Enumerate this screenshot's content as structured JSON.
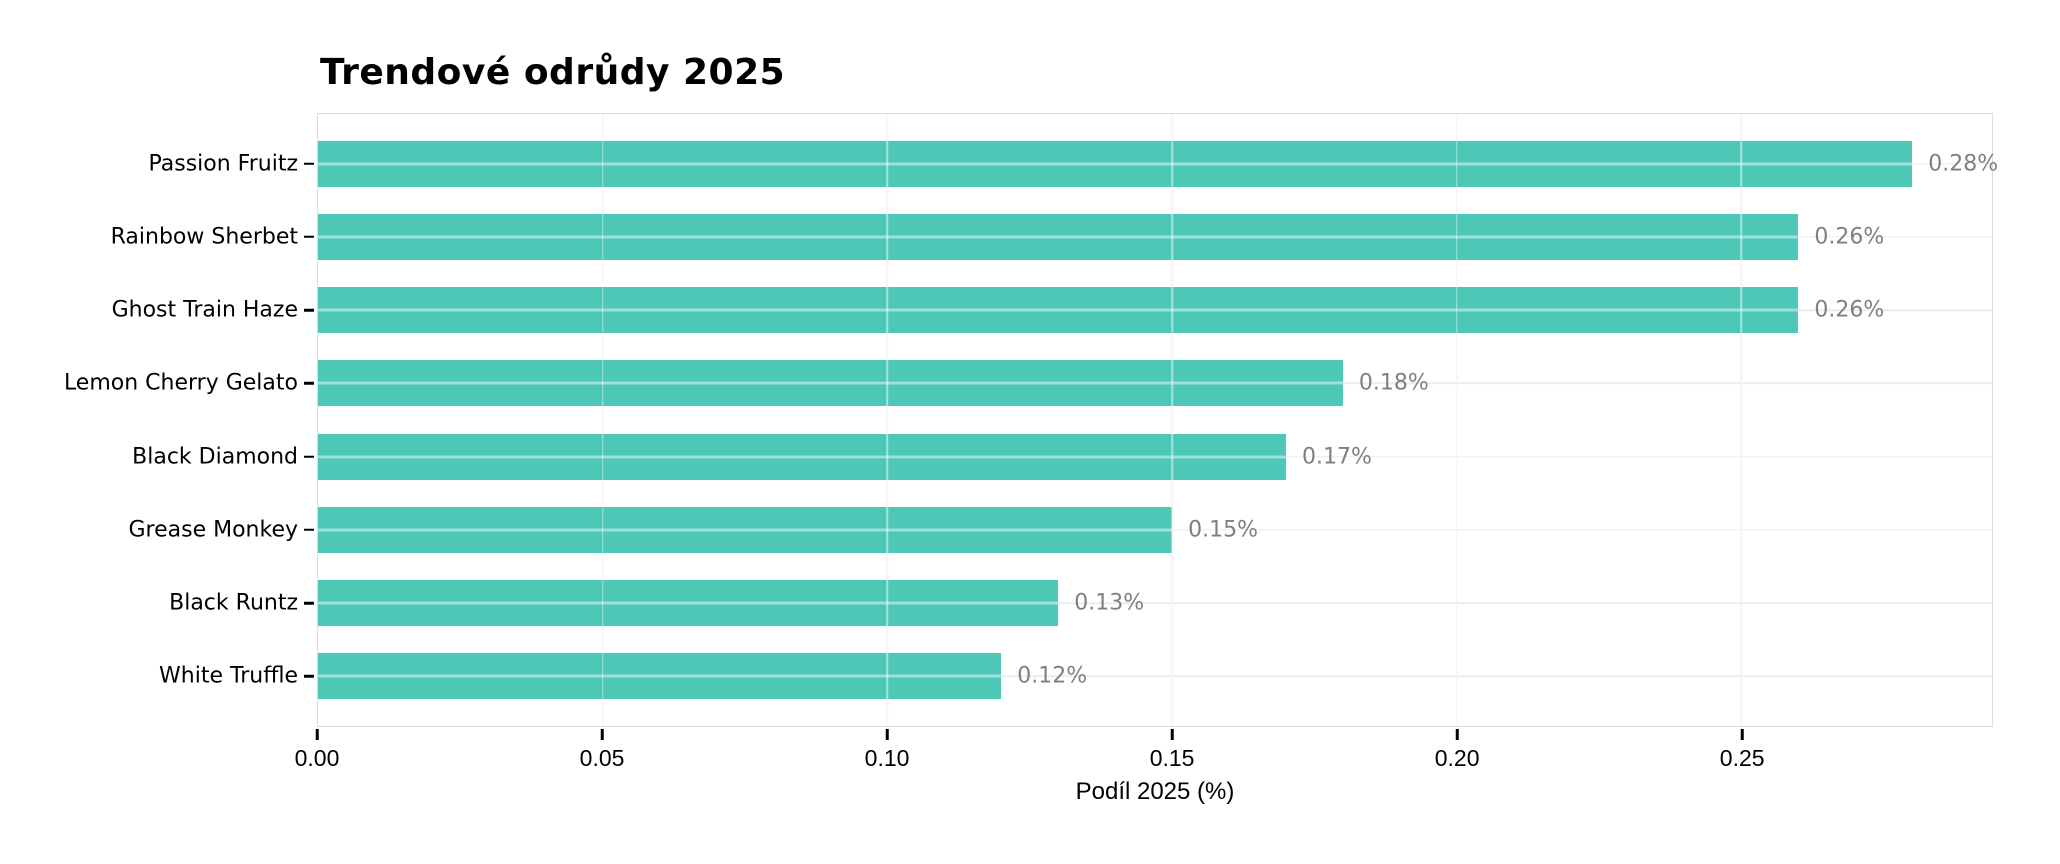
{
  "chart_data": {
    "type": "bar",
    "orientation": "horizontal",
    "title": "Trendové odrůdy 2025",
    "xlabel": "Podíl 2025 (%)",
    "categories": [
      "Passion Fruitz",
      "Rainbow Sherbet",
      "Ghost Train Haze",
      "Lemon Cherry Gelato",
      "Black Diamond",
      "Grease Monkey",
      "Black Runtz",
      "White Truffle"
    ],
    "values": [
      0.28,
      0.26,
      0.26,
      0.18,
      0.17,
      0.15,
      0.13,
      0.12
    ],
    "value_labels": [
      "0.28%",
      "0.26%",
      "0.26%",
      "0.18%",
      "0.17%",
      "0.15%",
      "0.13%",
      "0.12%"
    ],
    "x_ticks": [
      {
        "value": 0.0,
        "label": "0.00"
      },
      {
        "value": 0.05,
        "label": "0.05"
      },
      {
        "value": 0.1,
        "label": "0.10"
      },
      {
        "value": 0.15,
        "label": "0.15"
      },
      {
        "value": 0.2,
        "label": "0.20"
      },
      {
        "value": 0.25,
        "label": "0.25"
      }
    ],
    "xlim": [
      0,
      0.294
    ],
    "grid": true,
    "legend": "none",
    "colors": {
      "bar": "#4DC8B7",
      "value_label": "#7f7f7f",
      "grid": "#ececec",
      "plot_border": "#dcdcdc",
      "tick": "#000000",
      "text": "#000000",
      "background": "#ffffff"
    }
  }
}
